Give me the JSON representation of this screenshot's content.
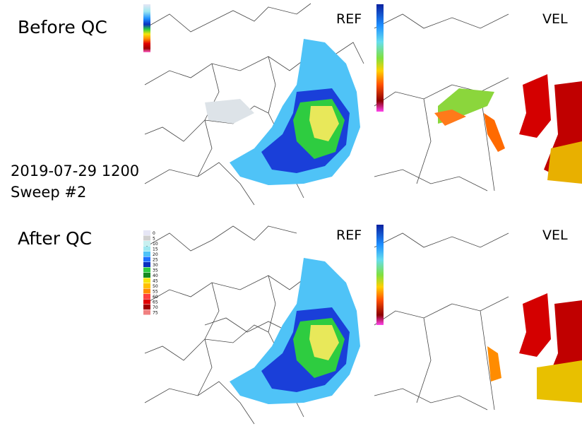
{
  "panels": [
    {
      "label": "Before QC",
      "ref_title": "REF",
      "vel_title": "VEL"
    },
    {
      "label": "After QC",
      "ref_title": "REF",
      "vel_title": "VEL"
    }
  ],
  "info": {
    "datetime": "2019-07-29 1200",
    "sweep": "Sweep #2"
  },
  "ref_legend": {
    "labels": [
      "0",
      "5",
      "10",
      "15",
      "20",
      "25",
      "30",
      "35",
      "40",
      "45",
      "50",
      "55",
      "60",
      "65",
      "70",
      "75"
    ]
  }
}
